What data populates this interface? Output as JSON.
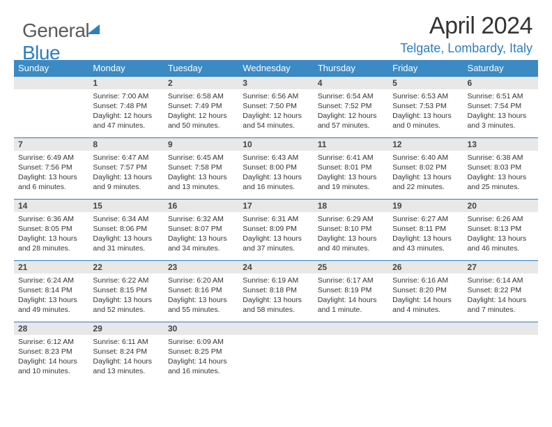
{
  "logo": {
    "part1": "General",
    "part2": "Blue"
  },
  "title": "April 2024",
  "location": "Telgate, Lombardy, Italy",
  "colors": {
    "header_bg": "#3b8ac4",
    "accent": "#2d7fc0",
    "daynum_bg": "#e8e8e8",
    "text": "#333333",
    "logo_gray": "#5a5a5a"
  },
  "weekdays": [
    "Sunday",
    "Monday",
    "Tuesday",
    "Wednesday",
    "Thursday",
    "Friday",
    "Saturday"
  ],
  "weeks": [
    [
      null,
      {
        "n": "1",
        "sr": "7:00 AM",
        "ss": "7:48 PM",
        "dl": "12 hours and 47 minutes."
      },
      {
        "n": "2",
        "sr": "6:58 AM",
        "ss": "7:49 PM",
        "dl": "12 hours and 50 minutes."
      },
      {
        "n": "3",
        "sr": "6:56 AM",
        "ss": "7:50 PM",
        "dl": "12 hours and 54 minutes."
      },
      {
        "n": "4",
        "sr": "6:54 AM",
        "ss": "7:52 PM",
        "dl": "12 hours and 57 minutes."
      },
      {
        "n": "5",
        "sr": "6:53 AM",
        "ss": "7:53 PM",
        "dl": "13 hours and 0 minutes."
      },
      {
        "n": "6",
        "sr": "6:51 AM",
        "ss": "7:54 PM",
        "dl": "13 hours and 3 minutes."
      }
    ],
    [
      {
        "n": "7",
        "sr": "6:49 AM",
        "ss": "7:56 PM",
        "dl": "13 hours and 6 minutes."
      },
      {
        "n": "8",
        "sr": "6:47 AM",
        "ss": "7:57 PM",
        "dl": "13 hours and 9 minutes."
      },
      {
        "n": "9",
        "sr": "6:45 AM",
        "ss": "7:58 PM",
        "dl": "13 hours and 13 minutes."
      },
      {
        "n": "10",
        "sr": "6:43 AM",
        "ss": "8:00 PM",
        "dl": "13 hours and 16 minutes."
      },
      {
        "n": "11",
        "sr": "6:41 AM",
        "ss": "8:01 PM",
        "dl": "13 hours and 19 minutes."
      },
      {
        "n": "12",
        "sr": "6:40 AM",
        "ss": "8:02 PM",
        "dl": "13 hours and 22 minutes."
      },
      {
        "n": "13",
        "sr": "6:38 AM",
        "ss": "8:03 PM",
        "dl": "13 hours and 25 minutes."
      }
    ],
    [
      {
        "n": "14",
        "sr": "6:36 AM",
        "ss": "8:05 PM",
        "dl": "13 hours and 28 minutes."
      },
      {
        "n": "15",
        "sr": "6:34 AM",
        "ss": "8:06 PM",
        "dl": "13 hours and 31 minutes."
      },
      {
        "n": "16",
        "sr": "6:32 AM",
        "ss": "8:07 PM",
        "dl": "13 hours and 34 minutes."
      },
      {
        "n": "17",
        "sr": "6:31 AM",
        "ss": "8:09 PM",
        "dl": "13 hours and 37 minutes."
      },
      {
        "n": "18",
        "sr": "6:29 AM",
        "ss": "8:10 PM",
        "dl": "13 hours and 40 minutes."
      },
      {
        "n": "19",
        "sr": "6:27 AM",
        "ss": "8:11 PM",
        "dl": "13 hours and 43 minutes."
      },
      {
        "n": "20",
        "sr": "6:26 AM",
        "ss": "8:13 PM",
        "dl": "13 hours and 46 minutes."
      }
    ],
    [
      {
        "n": "21",
        "sr": "6:24 AM",
        "ss": "8:14 PM",
        "dl": "13 hours and 49 minutes."
      },
      {
        "n": "22",
        "sr": "6:22 AM",
        "ss": "8:15 PM",
        "dl": "13 hours and 52 minutes."
      },
      {
        "n": "23",
        "sr": "6:20 AM",
        "ss": "8:16 PM",
        "dl": "13 hours and 55 minutes."
      },
      {
        "n": "24",
        "sr": "6:19 AM",
        "ss": "8:18 PM",
        "dl": "13 hours and 58 minutes."
      },
      {
        "n": "25",
        "sr": "6:17 AM",
        "ss": "8:19 PM",
        "dl": "14 hours and 1 minute."
      },
      {
        "n": "26",
        "sr": "6:16 AM",
        "ss": "8:20 PM",
        "dl": "14 hours and 4 minutes."
      },
      {
        "n": "27",
        "sr": "6:14 AM",
        "ss": "8:22 PM",
        "dl": "14 hours and 7 minutes."
      }
    ],
    [
      {
        "n": "28",
        "sr": "6:12 AM",
        "ss": "8:23 PM",
        "dl": "14 hours and 10 minutes."
      },
      {
        "n": "29",
        "sr": "6:11 AM",
        "ss": "8:24 PM",
        "dl": "14 hours and 13 minutes."
      },
      {
        "n": "30",
        "sr": "6:09 AM",
        "ss": "8:25 PM",
        "dl": "14 hours and 16 minutes."
      },
      null,
      null,
      null,
      null
    ]
  ],
  "labels": {
    "sunrise": "Sunrise:",
    "sunset": "Sunset:",
    "daylight": "Daylight:"
  }
}
